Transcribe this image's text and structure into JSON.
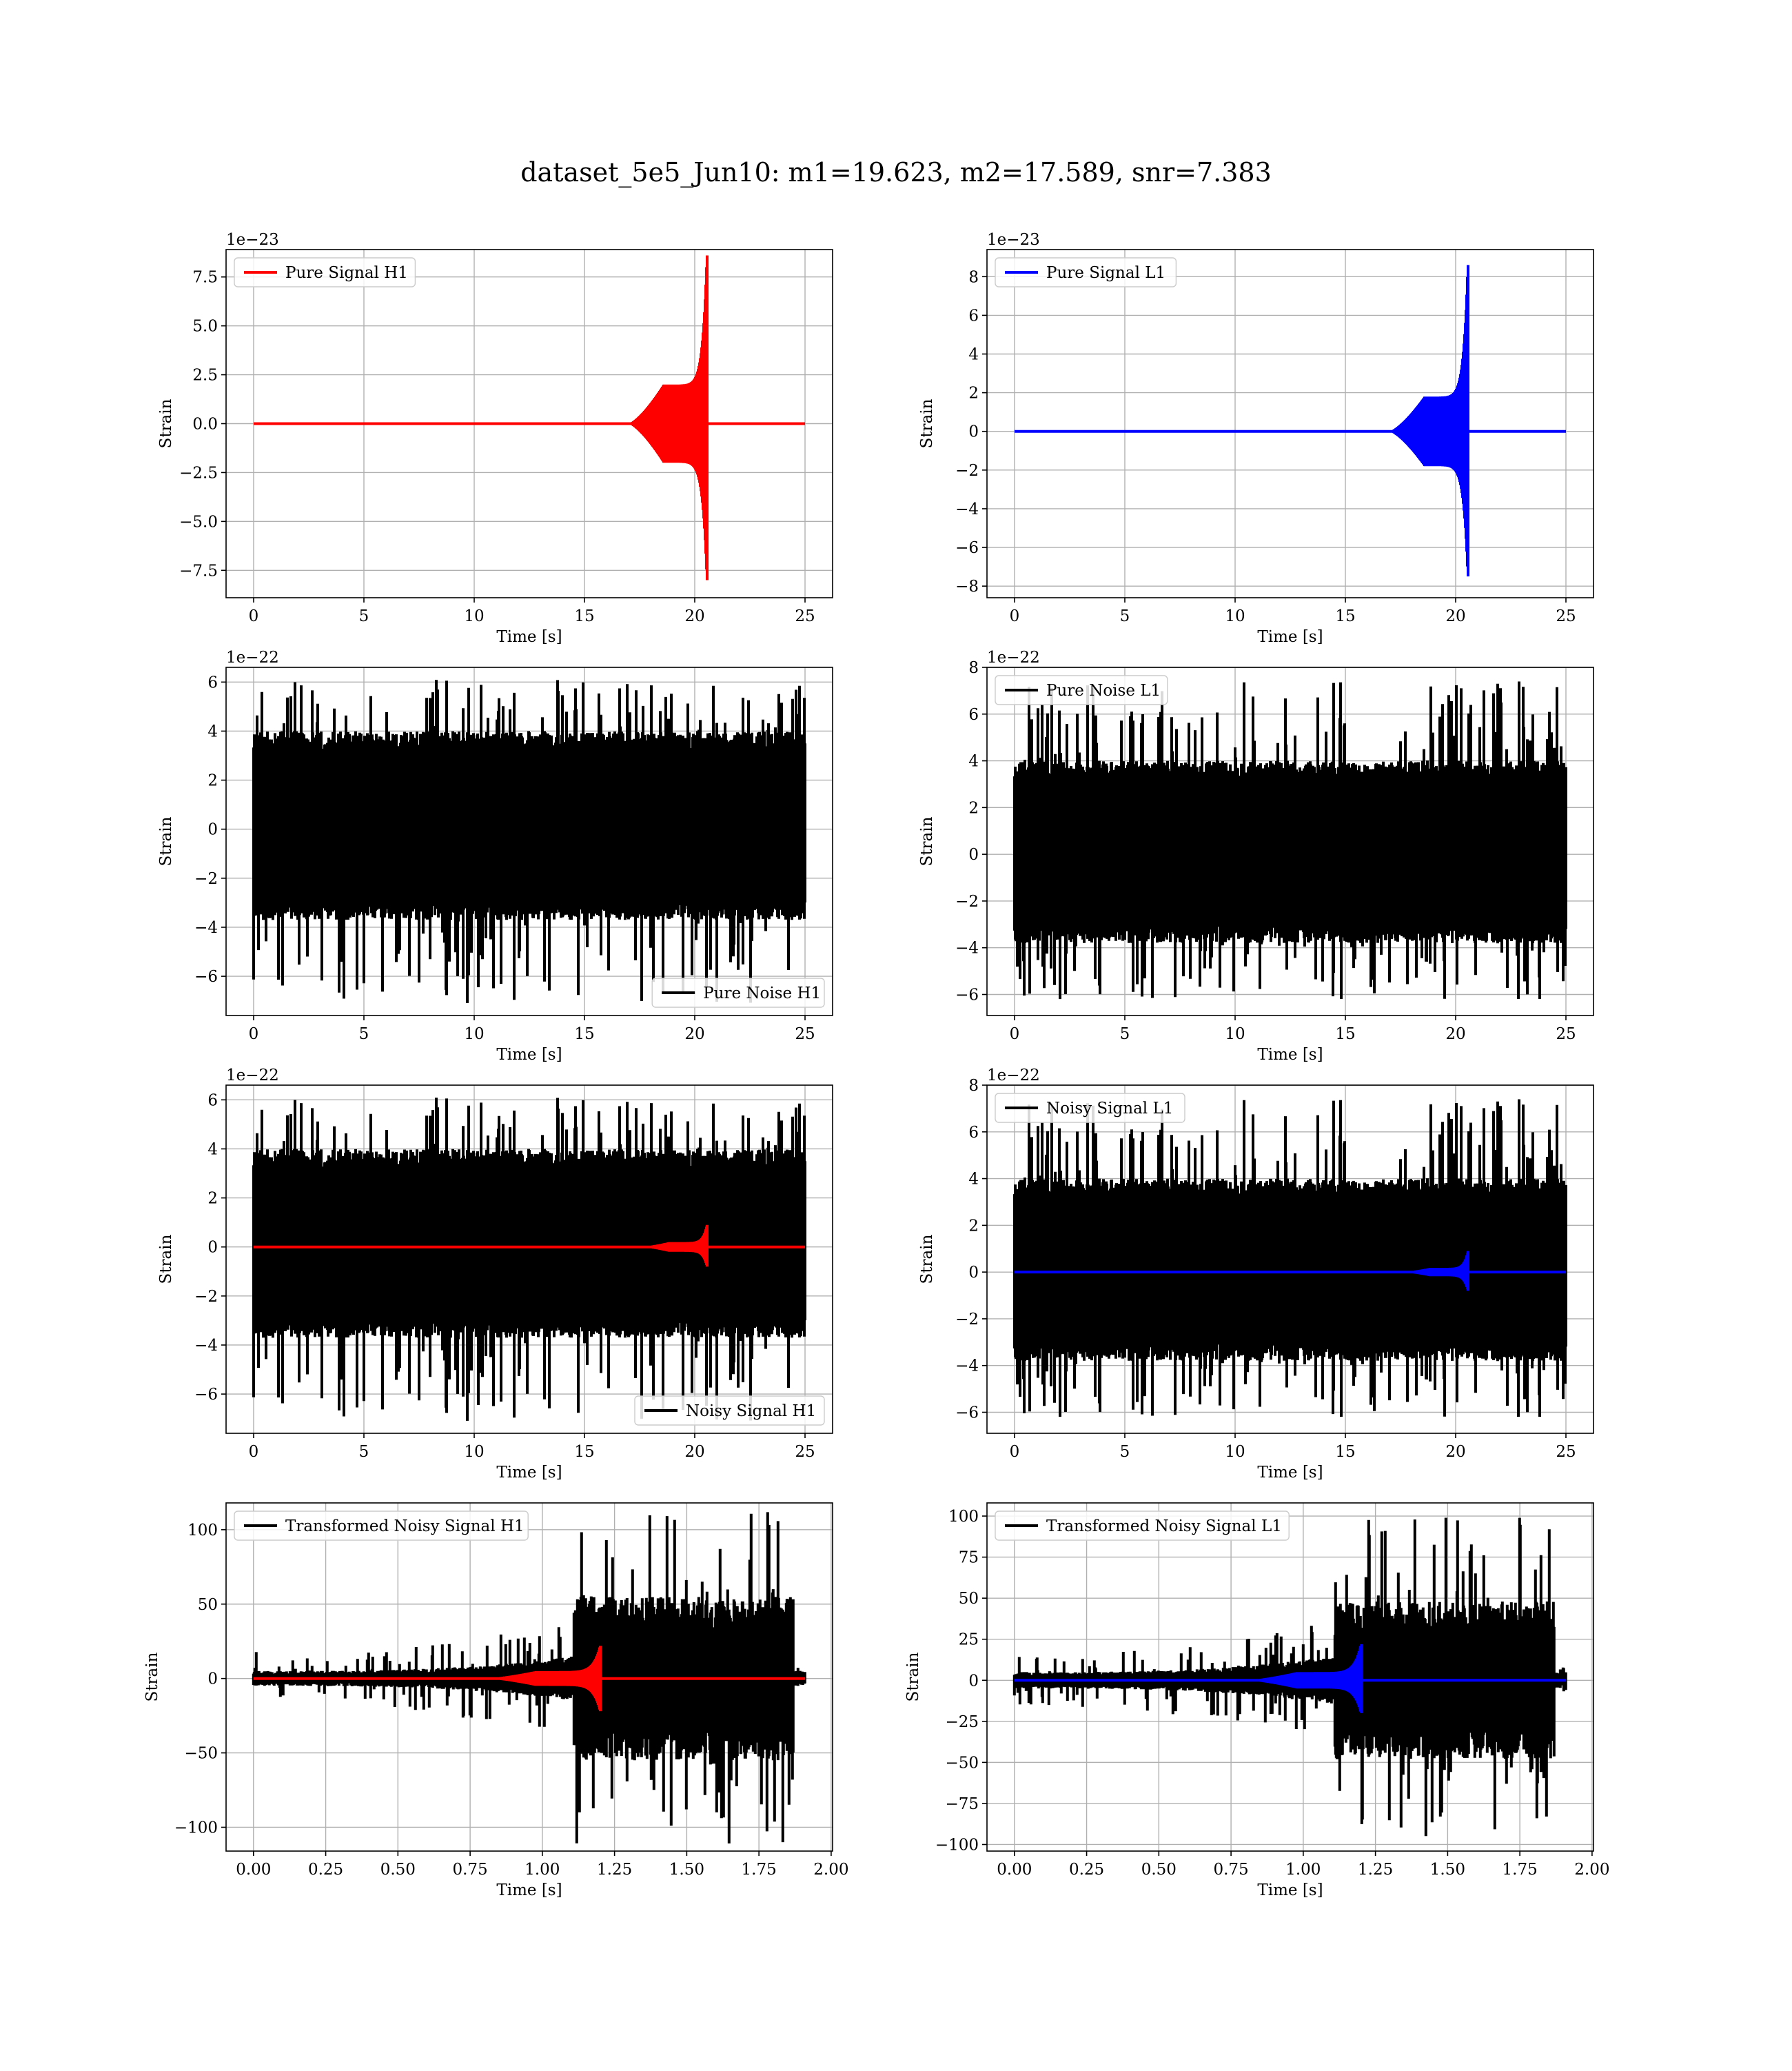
{
  "figure": {
    "title": "dataset_5e5_Jun10: m1=19.623, m2=17.589, snr=7.383"
  },
  "colors": {
    "signal_h1": "#ff0000",
    "signal_l1": "#0000ff",
    "noise": "#000000",
    "grid": "#b0b0b0"
  },
  "chart_data": [
    {
      "id": "pure_signal_h1",
      "type": "line",
      "xlabel": "Time [s]",
      "ylabel": "Strain",
      "offset_text": "1e−23",
      "xlim": [
        -1.25,
        26.25
      ],
      "ylim": [
        -8.9,
        8.9
      ],
      "xticks": [
        0,
        5,
        10,
        15,
        20,
        25
      ],
      "xtick_labels": [
        "0",
        "5",
        "10",
        "15",
        "20",
        "25"
      ],
      "yticks": [
        -7.5,
        -5.0,
        -2.5,
        0.0,
        2.5,
        5.0,
        7.5
      ],
      "ytick_labels": [
        "−7.5",
        "−5.0",
        "−2.5",
        "0.0",
        "2.5",
        "5.0",
        "7.5"
      ],
      "legend": {
        "position": "upper-left",
        "entries": [
          {
            "label": "Pure Signal H1",
            "color": "#ff0000"
          }
        ]
      },
      "series": [
        {
          "name": "Pure Signal H1",
          "kind": "chirp",
          "color": "#ff0000",
          "x_start": 0,
          "x_end": 25,
          "onset": 17.0,
          "merger": 20.55,
          "plateau": 2.0,
          "peak_pos": 8.6,
          "peak_neg": -8.0
        }
      ]
    },
    {
      "id": "pure_signal_l1",
      "type": "line",
      "xlabel": "Time [s]",
      "ylabel": "Strain",
      "offset_text": "1e−23",
      "xlim": [
        -1.25,
        26.25
      ],
      "ylim": [
        -8.6,
        9.4
      ],
      "xticks": [
        0,
        5,
        10,
        15,
        20,
        25
      ],
      "xtick_labels": [
        "0",
        "5",
        "10",
        "15",
        "20",
        "25"
      ],
      "yticks": [
        -8,
        -6,
        -4,
        -2,
        0,
        2,
        4,
        6,
        8
      ],
      "ytick_labels": [
        "−8",
        "−6",
        "−4",
        "−2",
        "0",
        "2",
        "4",
        "6",
        "8"
      ],
      "legend": {
        "position": "upper-left",
        "entries": [
          {
            "label": "Pure Signal L1",
            "color": "#0000ff"
          }
        ]
      },
      "series": [
        {
          "name": "Pure Signal L1",
          "kind": "chirp",
          "color": "#0000ff",
          "x_start": 0,
          "x_end": 25,
          "onset": 17.0,
          "merger": 20.55,
          "plateau": 1.8,
          "peak_pos": 8.6,
          "peak_neg": -7.5
        }
      ]
    },
    {
      "id": "pure_noise_h1",
      "type": "line",
      "xlabel": "Time [s]",
      "ylabel": "Strain",
      "offset_text": "1e−22",
      "xlim": [
        -1.25,
        26.25
      ],
      "ylim": [
        -7.6,
        6.6
      ],
      "xticks": [
        0,
        5,
        10,
        15,
        20,
        25
      ],
      "xtick_labels": [
        "0",
        "5",
        "10",
        "15",
        "20",
        "25"
      ],
      "yticks": [
        -6,
        -4,
        -2,
        0,
        2,
        4,
        6
      ],
      "ytick_labels": [
        "−6",
        "−4",
        "−2",
        "0",
        "2",
        "4",
        "6"
      ],
      "legend": {
        "position": "lower-right",
        "entries": [
          {
            "label": "Pure Noise H1",
            "color": "#000000"
          }
        ]
      },
      "series": [
        {
          "name": "Pure Noise H1",
          "kind": "noise",
          "color": "#000000",
          "x_start": 0,
          "x_end": 25,
          "band_pos": 4.0,
          "band_neg": -3.7,
          "max": 6.1,
          "min": -7.1,
          "seed": 11
        }
      ]
    },
    {
      "id": "pure_noise_l1",
      "type": "line",
      "xlabel": "Time [s]",
      "ylabel": "Strain",
      "offset_text": "1e−22",
      "xlim": [
        -1.25,
        26.25
      ],
      "ylim": [
        -6.9,
        8.0
      ],
      "xticks": [
        0,
        5,
        10,
        15,
        20,
        25
      ],
      "xtick_labels": [
        "0",
        "5",
        "10",
        "15",
        "20",
        "25"
      ],
      "yticks": [
        -6,
        -4,
        -2,
        0,
        2,
        4,
        6,
        8
      ],
      "ytick_labels": [
        "−6",
        "−4",
        "−2",
        "0",
        "2",
        "4",
        "6",
        "8"
      ],
      "legend": {
        "position": "upper-left",
        "entries": [
          {
            "label": "Pure Noise L1",
            "color": "#000000"
          }
        ]
      },
      "series": [
        {
          "name": "Pure Noise L1",
          "kind": "noise",
          "color": "#000000",
          "x_start": 0,
          "x_end": 25,
          "band_pos": 4.0,
          "band_neg": -3.8,
          "max": 7.4,
          "min": -6.2,
          "seed": 23
        }
      ]
    },
    {
      "id": "noisy_signal_h1",
      "type": "line",
      "xlabel": "Time [s]",
      "ylabel": "Strain",
      "offset_text": "1e−22",
      "xlim": [
        -1.25,
        26.25
      ],
      "ylim": [
        -7.6,
        6.6
      ],
      "xticks": [
        0,
        5,
        10,
        15,
        20,
        25
      ],
      "xtick_labels": [
        "0",
        "5",
        "10",
        "15",
        "20",
        "25"
      ],
      "yticks": [
        -6,
        -4,
        -2,
        0,
        2,
        4,
        6
      ],
      "ytick_labels": [
        "−6",
        "−4",
        "−2",
        "0",
        "2",
        "4",
        "6"
      ],
      "legend": {
        "position": "lower-right",
        "entries": [
          {
            "label": "Noisy Signal H1",
            "color": "#000000"
          }
        ]
      },
      "series": [
        {
          "name": "Noisy Signal H1",
          "kind": "noise",
          "color": "#000000",
          "x_start": 0,
          "x_end": 25,
          "band_pos": 4.0,
          "band_neg": -3.7,
          "max": 6.1,
          "min": -7.1,
          "seed": 11
        },
        {
          "kind": "chirp",
          "color": "#ff0000",
          "x_start": 0,
          "x_end": 25,
          "onset": 17.5,
          "merger": 20.55,
          "plateau": 0.2,
          "peak_pos": 0.9,
          "peak_neg": -0.8
        }
      ]
    },
    {
      "id": "noisy_signal_l1",
      "type": "line",
      "xlabel": "Time [s]",
      "ylabel": "Strain",
      "offset_text": "1e−22",
      "xlim": [
        -1.25,
        26.25
      ],
      "ylim": [
        -6.9,
        8.0
      ],
      "xticks": [
        0,
        5,
        10,
        15,
        20,
        25
      ],
      "xtick_labels": [
        "0",
        "5",
        "10",
        "15",
        "20",
        "25"
      ],
      "yticks": [
        -6,
        -4,
        -2,
        0,
        2,
        4,
        6,
        8
      ],
      "ytick_labels": [
        "−6",
        "−4",
        "−2",
        "0",
        "2",
        "4",
        "6",
        "8"
      ],
      "legend": {
        "position": "upper-left",
        "entries": [
          {
            "label": "Noisy Signal L1",
            "color": "#000000"
          }
        ]
      },
      "series": [
        {
          "name": "Noisy Signal L1",
          "kind": "noise",
          "color": "#000000",
          "x_start": 0,
          "x_end": 25,
          "band_pos": 4.0,
          "band_neg": -3.8,
          "max": 7.4,
          "min": -6.2,
          "seed": 23
        },
        {
          "kind": "chirp",
          "color": "#0000ff",
          "x_start": 0,
          "x_end": 25,
          "onset": 17.5,
          "merger": 20.55,
          "plateau": 0.18,
          "peak_pos": 0.9,
          "peak_neg": -0.8
        }
      ]
    },
    {
      "id": "transformed_noisy_signal_h1",
      "type": "line",
      "xlabel": "Time [s]",
      "ylabel": "Strain",
      "offset_text": "",
      "xlim": [
        -0.095,
        2.005
      ],
      "ylim": [
        -116,
        118
      ],
      "xticks": [
        0.0,
        0.25,
        0.5,
        0.75,
        1.0,
        1.25,
        1.5,
        1.75,
        2.0
      ],
      "xtick_labels": [
        "0.00",
        "0.25",
        "0.50",
        "0.75",
        "1.00",
        "1.25",
        "1.50",
        "1.75",
        "2.00"
      ],
      "yticks": [
        -100,
        -50,
        0,
        50,
        100
      ],
      "ytick_labels": [
        "−100",
        "−50",
        "0",
        "50",
        "100"
      ],
      "legend": {
        "position": "upper-left",
        "entries": [
          {
            "label": "Transformed Noisy Signal H1",
            "color": "#000000"
          }
        ]
      },
      "series": [
        {
          "name": "Transformed Noisy Signal H1",
          "kind": "whitened",
          "color": "#000000",
          "x_start": 0,
          "x_end": 1.91,
          "step": 1.11,
          "gate": 1.87,
          "low_band": 5,
          "low_max": 18,
          "high_band": 55,
          "max": 112,
          "min": -113,
          "seed": 5
        },
        {
          "kind": "chirp",
          "color": "#ff0000",
          "x_start": 0,
          "x_end": 1.91,
          "onset": 0.8,
          "merger": 1.2,
          "plateau": 5,
          "peak_pos": 22,
          "peak_neg": -22
        }
      ]
    },
    {
      "id": "transformed_noisy_signal_l1",
      "type": "line",
      "xlabel": "Time [s]",
      "ylabel": "Strain",
      "offset_text": "",
      "xlim": [
        -0.095,
        2.005
      ],
      "ylim": [
        -104,
        108
      ],
      "xticks": [
        0.0,
        0.25,
        0.5,
        0.75,
        1.0,
        1.25,
        1.5,
        1.75,
        2.0
      ],
      "xtick_labels": [
        "0.00",
        "0.25",
        "0.50",
        "0.75",
        "1.00",
        "1.25",
        "1.50",
        "1.75",
        "2.00"
      ],
      "yticks": [
        -100,
        -75,
        -50,
        -25,
        0,
        25,
        50,
        75,
        100
      ],
      "ytick_labels": [
        "−100",
        "−75",
        "−50",
        "−25",
        "0",
        "25",
        "50",
        "75",
        "100"
      ],
      "legend": {
        "position": "upper-left",
        "entries": [
          {
            "label": "Transformed Noisy Signal L1",
            "color": "#000000"
          }
        ]
      },
      "series": [
        {
          "name": "Transformed Noisy Signal L1",
          "kind": "whitened",
          "color": "#000000",
          "x_start": 0,
          "x_end": 1.91,
          "step": 1.11,
          "gate": 1.87,
          "low_band": 5,
          "low_max": 16,
          "high_band": 48,
          "max": 100,
          "min": -95,
          "seed": 9
        },
        {
          "kind": "chirp",
          "color": "#0000ff",
          "x_start": 0,
          "x_end": 1.91,
          "onset": 0.8,
          "merger": 1.2,
          "plateau": 5,
          "peak_pos": 22,
          "peak_neg": -20
        }
      ]
    }
  ]
}
